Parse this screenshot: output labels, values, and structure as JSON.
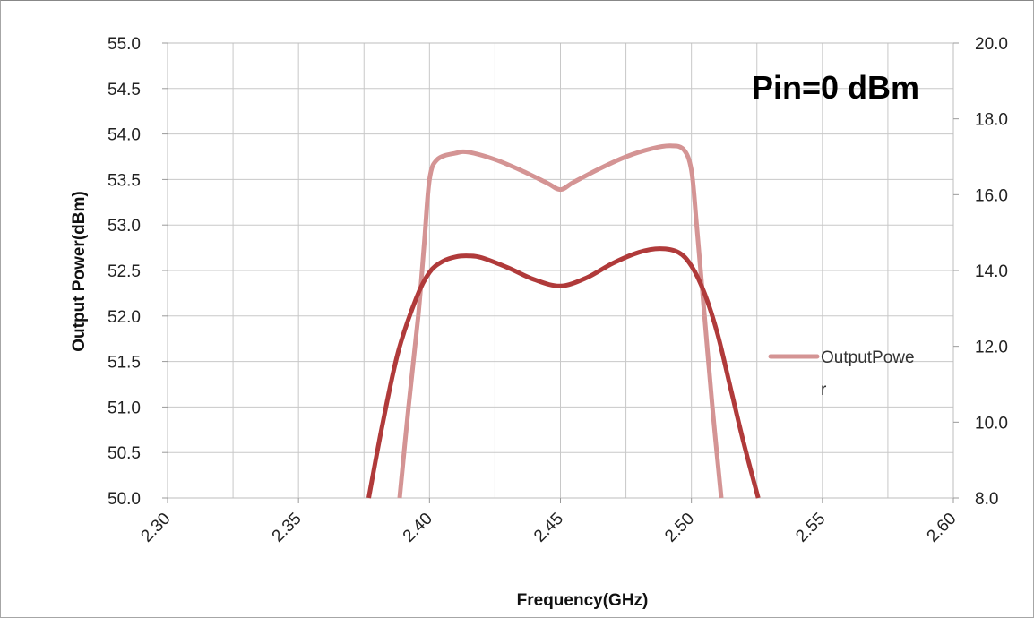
{
  "chart_data": {
    "type": "line",
    "xlabel": "Frequency(GHz)",
    "ylabel": "Output  Power(dBm)",
    "x_ticks": [
      "2.30",
      "2.35",
      "2.40",
      "2.45",
      "2.50",
      "2.55",
      "2.60"
    ],
    "y_ticks": [
      "50.0",
      "50.5",
      "51.0",
      "51.5",
      "52.0",
      "52.5",
      "53.0",
      "53.5",
      "54.0",
      "54.5",
      "55.0"
    ],
    "y2_ticks": [
      "8.0",
      "10.0",
      "12.0",
      "14.0",
      "16.0",
      "18.0",
      "20.0"
    ],
    "xlim": [
      2.3,
      2.6
    ],
    "ylim": [
      50.0,
      55.0
    ],
    "y2lim": [
      8.0,
      20.0
    ],
    "grid": true,
    "annotation": "Pin=0 dBm",
    "legend_position": "right",
    "legend_lines": [
      "OutputPowe",
      "r"
    ],
    "series": [
      {
        "name": "OutputPower",
        "axis": "left",
        "color": "#d49494",
        "points": [
          [
            2.3886,
            50.0
          ],
          [
            2.392,
            51.0
          ],
          [
            2.3957,
            52.0
          ],
          [
            2.398,
            52.8
          ],
          [
            2.4,
            53.5
          ],
          [
            2.403,
            53.72
          ],
          [
            2.41,
            53.79
          ],
          [
            2.415,
            53.8
          ],
          [
            2.425,
            53.72
          ],
          [
            2.435,
            53.6
          ],
          [
            2.445,
            53.46
          ],
          [
            2.45,
            53.39
          ],
          [
            2.455,
            53.47
          ],
          [
            2.465,
            53.62
          ],
          [
            2.475,
            53.75
          ],
          [
            2.485,
            53.84
          ],
          [
            2.492,
            53.87
          ],
          [
            2.497,
            53.83
          ],
          [
            2.5,
            53.6
          ],
          [
            2.502,
            53.0
          ],
          [
            2.505,
            52.0
          ],
          [
            2.508,
            51.0
          ],
          [
            2.5114,
            50.0
          ]
        ]
      },
      {
        "axis": "left",
        "color": "#b03a3a",
        "points": [
          [
            2.3768,
            50.0
          ],
          [
            2.382,
            50.8
          ],
          [
            2.388,
            51.6
          ],
          [
            2.395,
            52.2
          ],
          [
            2.4,
            52.48
          ],
          [
            2.405,
            52.6
          ],
          [
            2.41,
            52.65
          ],
          [
            2.415,
            52.66
          ],
          [
            2.42,
            52.64
          ],
          [
            2.43,
            52.53
          ],
          [
            2.44,
            52.4
          ],
          [
            2.45,
            52.33
          ],
          [
            2.46,
            52.42
          ],
          [
            2.47,
            52.58
          ],
          [
            2.48,
            52.7
          ],
          [
            2.488,
            52.74
          ],
          [
            2.495,
            52.7
          ],
          [
            2.5,
            52.55
          ],
          [
            2.505,
            52.25
          ],
          [
            2.51,
            51.8
          ],
          [
            2.515,
            51.2
          ],
          [
            2.52,
            50.6
          ],
          [
            2.5255,
            50.0
          ]
        ]
      }
    ]
  }
}
